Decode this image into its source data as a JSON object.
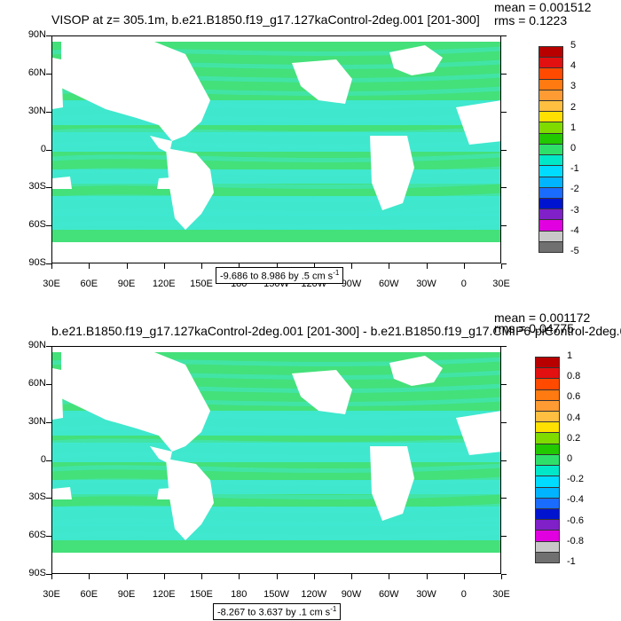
{
  "panels": [
    {
      "title": "VISOP at z= 305.1m, b.e21.B1850.f19_g17.127kaControl-2deg.001 [201-300]",
      "mean_text": "mean = 0.001512",
      "rms_text": "rms = 0.1223",
      "range_text": "-9.686 to 8.986 by .5 cm s",
      "range_unit_exp": "-1",
      "colorbar_labels": [
        "5",
        "4",
        "3",
        "2",
        "1",
        "0",
        "-1",
        "-2",
        "-3",
        "-4",
        "-5"
      ]
    },
    {
      "title": "b.e21.B1850.f19_g17.127kaControl-2deg.001 [201-300] - b.e21.B1850.f19_g17.CMIP6-piControl-2deg.0",
      "mean_text": "mean = 0.001172",
      "rms_text": "rms = 0.04775",
      "range_text": "-8.267 to 3.637 by .1 cm s",
      "range_unit_exp": "-1",
      "colorbar_labels": [
        "1",
        "0.8",
        "0.6",
        "0.4",
        "0.2",
        "0",
        "-0.2",
        "-0.4",
        "-0.6",
        "-0.8",
        "-1"
      ]
    }
  ],
  "lat_labels": [
    "90N",
    "60N",
    "30N",
    "0",
    "30S",
    "60S",
    "90S"
  ],
  "lon_labels": [
    "30E",
    "60E",
    "90E",
    "120E",
    "150E",
    "180",
    "150W",
    "120W",
    "90W",
    "60W",
    "30W",
    "0",
    "30E"
  ],
  "colorbar_colors": [
    "#b80000",
    "#e21010",
    "#ff4a00",
    "#ff7a10",
    "#ff9b33",
    "#ffbf40",
    "#ffe000",
    "#7fdb00",
    "#22c800",
    "#2ee06a",
    "#00e8c8",
    "#00dcff",
    "#00b4ff",
    "#1a6cff",
    "#0014d0",
    "#8020c8",
    "#e000e0",
    "#c8c8c8",
    "#707070"
  ],
  "map_colors": {
    "ocean_light": "#44e07a",
    "ocean_cyan": "#3fe8d2",
    "land": "#ffffff"
  }
}
